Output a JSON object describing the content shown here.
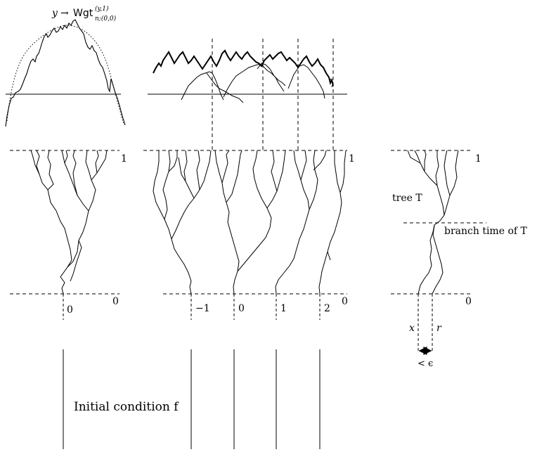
{
  "labels": {
    "weight_y": "y",
    "weight_arrow": "→",
    "weight_name": "Wgt",
    "weight_sup": "(y,1)",
    "weight_sub": "n;(0,0)",
    "time_one": "1",
    "time_zero": "0",
    "center_zero": "0",
    "loc_minus_one": "−1",
    "loc_zero": "0",
    "loc_one": "1",
    "loc_two": "2",
    "tree": "tree T",
    "branch_time": "branch time of T",
    "x": "x",
    "r": "r",
    "eps": "< ϵ",
    "initial_condition": "Initial condition f"
  }
}
